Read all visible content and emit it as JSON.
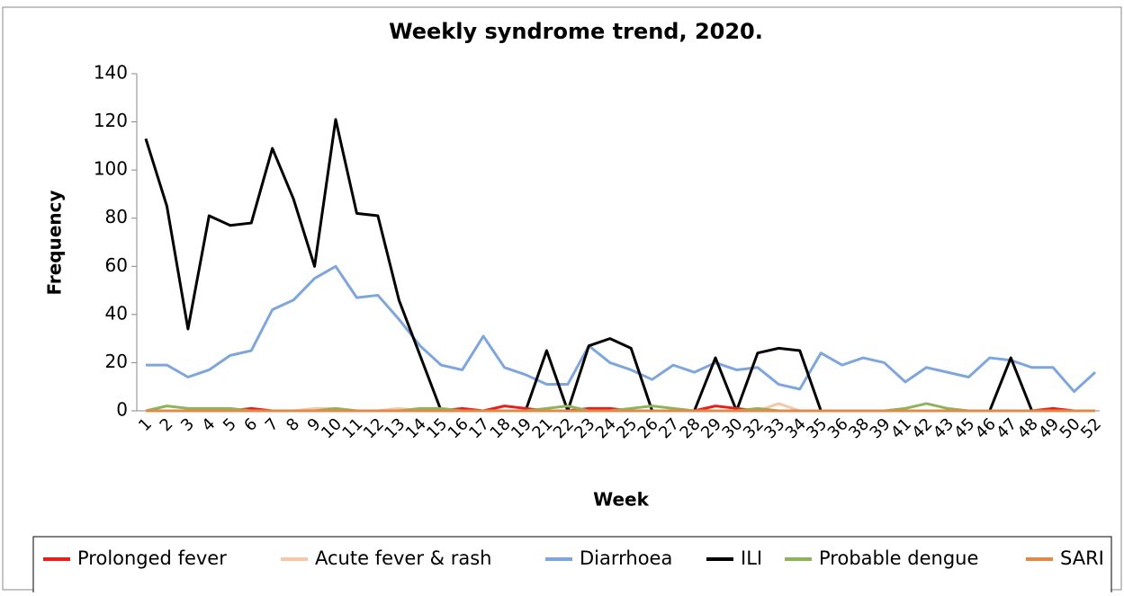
{
  "chart_data": {
    "type": "line",
    "title": "Weekly syndrome trend, 2020.",
    "x_label": "Week",
    "y_label": "Frequency",
    "categories": [
      "1",
      "2",
      "3",
      "4",
      "5",
      "6",
      "7",
      "8",
      "9",
      "10",
      "11",
      "12",
      "13",
      "14",
      "15",
      "16",
      "17",
      "18",
      "19",
      "21",
      "22",
      "23",
      "24",
      "25",
      "26",
      "27",
      "28",
      "29",
      "30",
      "32",
      "33",
      "34",
      "35",
      "36",
      "38",
      "39",
      "41",
      "42",
      "43",
      "45",
      "46",
      "47",
      "48",
      "49",
      "50",
      "52"
    ],
    "ylim": [
      0,
      140
    ],
    "yticks": [
      0,
      20,
      40,
      60,
      80,
      100,
      120,
      140
    ],
    "grid": false,
    "legend": "bottom",
    "series": [
      {
        "name": "Prolonged fever",
        "color": "#e8201c",
        "values": [
          0,
          0,
          0,
          0,
          0,
          1,
          0,
          0,
          0,
          0,
          0,
          0,
          0,
          0,
          0,
          1,
          0,
          2,
          1,
          0,
          0,
          1,
          1,
          0,
          0,
          0,
          0,
          2,
          1,
          0,
          0,
          0,
          0,
          0,
          0,
          0,
          0,
          0,
          0,
          0,
          0,
          0,
          0,
          1,
          0,
          0
        ]
      },
      {
        "name": "Acute fever & rash",
        "color": "#f6c7a8",
        "values": [
          0,
          0,
          0,
          0,
          0,
          0,
          0,
          0,
          1,
          1,
          0,
          0,
          1,
          0,
          0,
          0,
          0,
          0,
          0,
          0,
          0,
          0,
          0,
          0,
          0,
          0,
          0,
          0,
          0,
          0,
          3,
          0,
          0,
          0,
          0,
          0,
          0,
          0,
          0,
          0,
          0,
          0,
          0,
          0,
          0,
          0
        ]
      },
      {
        "name": "Diarrhoea",
        "color": "#7ea6dd",
        "values": [
          19,
          19,
          14,
          17,
          23,
          25,
          42,
          46,
          55,
          60,
          47,
          48,
          38,
          27,
          19,
          17,
          31,
          18,
          15,
          11,
          11,
          27,
          20,
          17,
          13,
          19,
          16,
          20,
          17,
          18,
          11,
          9,
          24,
          19,
          22,
          20,
          12,
          18,
          16,
          14,
          22,
          21,
          18,
          18,
          8,
          16
        ]
      },
      {
        "name": "ILI",
        "color": "#000000",
        "values": [
          113,
          85,
          34,
          81,
          77,
          78,
          109,
          88,
          60,
          121,
          82,
          81,
          46,
          23,
          0,
          0,
          0,
          0,
          0,
          25,
          0,
          27,
          30,
          26,
          0,
          0,
          0,
          22,
          0,
          24,
          26,
          25,
          0,
          0,
          0,
          0,
          0,
          0,
          0,
          0,
          0,
          22,
          0,
          0,
          0,
          0
        ]
      },
      {
        "name": "Probable dengue",
        "color": "#8fb35a",
        "values": [
          0,
          2,
          1,
          1,
          1,
          0,
          0,
          0,
          0,
          1,
          0,
          0,
          0,
          1,
          1,
          0,
          0,
          0,
          0,
          1,
          2,
          0,
          0,
          1,
          2,
          1,
          0,
          0,
          0,
          1,
          0,
          0,
          0,
          0,
          0,
          0,
          1,
          3,
          1,
          0,
          0,
          0,
          0,
          0,
          0,
          0
        ]
      },
      {
        "name": "SARI",
        "color": "#e08a4a",
        "values": [
          0,
          0,
          0,
          0,
          0,
          0,
          0,
          0,
          0,
          0,
          0,
          0,
          0,
          0,
          0,
          0,
          0,
          0,
          0,
          0,
          0,
          0,
          0,
          0,
          0,
          0,
          0,
          0,
          0,
          0,
          0,
          0,
          0,
          0,
          0,
          0,
          0,
          0,
          0,
          0,
          0,
          0,
          0,
          0,
          0,
          0
        ]
      }
    ]
  }
}
